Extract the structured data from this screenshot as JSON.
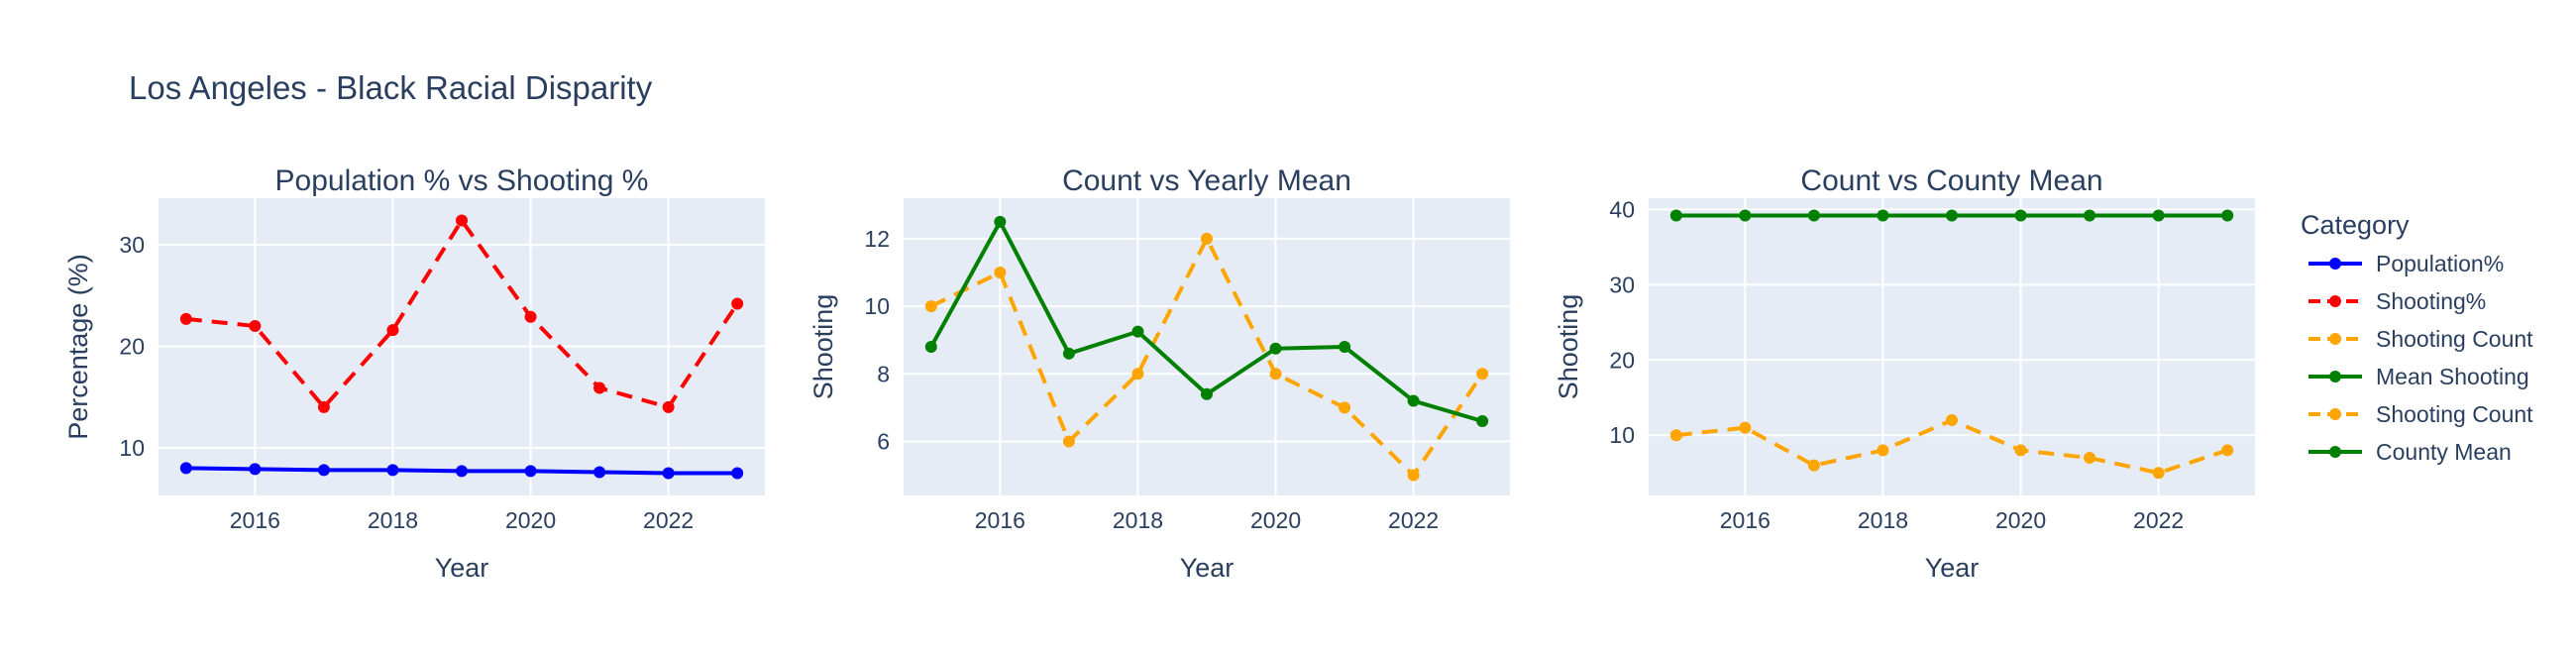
{
  "title": "Los Angeles - Black Racial Disparity",
  "legend": {
    "title": "Category",
    "items": [
      {
        "label": "Population%",
        "color": "#0000ff",
        "dash": "solid"
      },
      {
        "label": "Shooting%",
        "color": "#ff0000",
        "dash": "dash"
      },
      {
        "label": "Shooting Count",
        "color": "#ffa500",
        "dash": "dash"
      },
      {
        "label": "Mean Shooting",
        "color": "#008000",
        "dash": "solid"
      },
      {
        "label": "Shooting Count",
        "color": "#ffa500",
        "dash": "dash"
      },
      {
        "label": "County Mean",
        "color": "#008000",
        "dash": "solid"
      }
    ]
  },
  "chart_data": [
    {
      "type": "line",
      "title": "Population % vs Shooting %",
      "xlabel": "Year",
      "ylabel": "Percentage (%)",
      "xlim": [
        2014.6,
        2023.4
      ],
      "ylim": [
        5.3,
        34.6
      ],
      "xticks": [
        "2016",
        "2018",
        "2020",
        "2022"
      ],
      "yticks": [
        "10",
        "20",
        "30"
      ],
      "x": [
        2015,
        2016,
        2017,
        2018,
        2019,
        2020,
        2021,
        2022,
        2023
      ],
      "series": [
        {
          "name": "Population%",
          "color": "#0000ff",
          "dash": "solid",
          "values": [
            8.0,
            7.9,
            7.8,
            7.8,
            7.7,
            7.7,
            7.6,
            7.5,
            7.5
          ]
        },
        {
          "name": "Shooting%",
          "color": "#ff0000",
          "dash": "dash",
          "values": [
            22.7,
            22.0,
            14.0,
            21.6,
            32.4,
            22.9,
            15.9,
            14.0,
            24.2
          ]
        }
      ]
    },
    {
      "type": "line",
      "title": "Count vs Yearly Mean",
      "xlabel": "Year",
      "ylabel": "Shooting",
      "xlim": [
        2014.6,
        2023.4
      ],
      "ylim": [
        4.4,
        13.2
      ],
      "xticks": [
        "2016",
        "2018",
        "2020",
        "2022"
      ],
      "yticks": [
        "6",
        "8",
        "10",
        "12"
      ],
      "x": [
        2015,
        2016,
        2017,
        2018,
        2019,
        2020,
        2021,
        2022,
        2023
      ],
      "series": [
        {
          "name": "Shooting Count",
          "color": "#ffa500",
          "dash": "dash",
          "values": [
            10,
            11,
            6,
            8,
            12,
            8,
            7,
            5,
            8
          ]
        },
        {
          "name": "Mean Shooting",
          "color": "#008000",
          "dash": "solid",
          "values": [
            8.8,
            12.5,
            8.6,
            9.25,
            7.4,
            8.75,
            8.8,
            7.2,
            6.6
          ]
        }
      ]
    },
    {
      "type": "line",
      "title": "Count vs County Mean",
      "xlabel": "Year",
      "ylabel": "Shooting",
      "xlim": [
        2014.6,
        2023.4
      ],
      "ylim": [
        2.0,
        41.5
      ],
      "xticks": [
        "2016",
        "2018",
        "2020",
        "2022"
      ],
      "yticks": [
        "10",
        "20",
        "30",
        "40"
      ],
      "x": [
        2015,
        2016,
        2017,
        2018,
        2019,
        2020,
        2021,
        2022,
        2023
      ],
      "series": [
        {
          "name": "Shooting Count",
          "color": "#ffa500",
          "dash": "dash",
          "values": [
            10,
            11,
            6,
            8,
            12,
            8,
            7,
            5,
            8
          ]
        },
        {
          "name": "County Mean",
          "color": "#008000",
          "dash": "solid",
          "values": [
            39.2,
            39.2,
            39.2,
            39.2,
            39.2,
            39.2,
            39.2,
            39.2,
            39.2
          ]
        }
      ]
    }
  ]
}
